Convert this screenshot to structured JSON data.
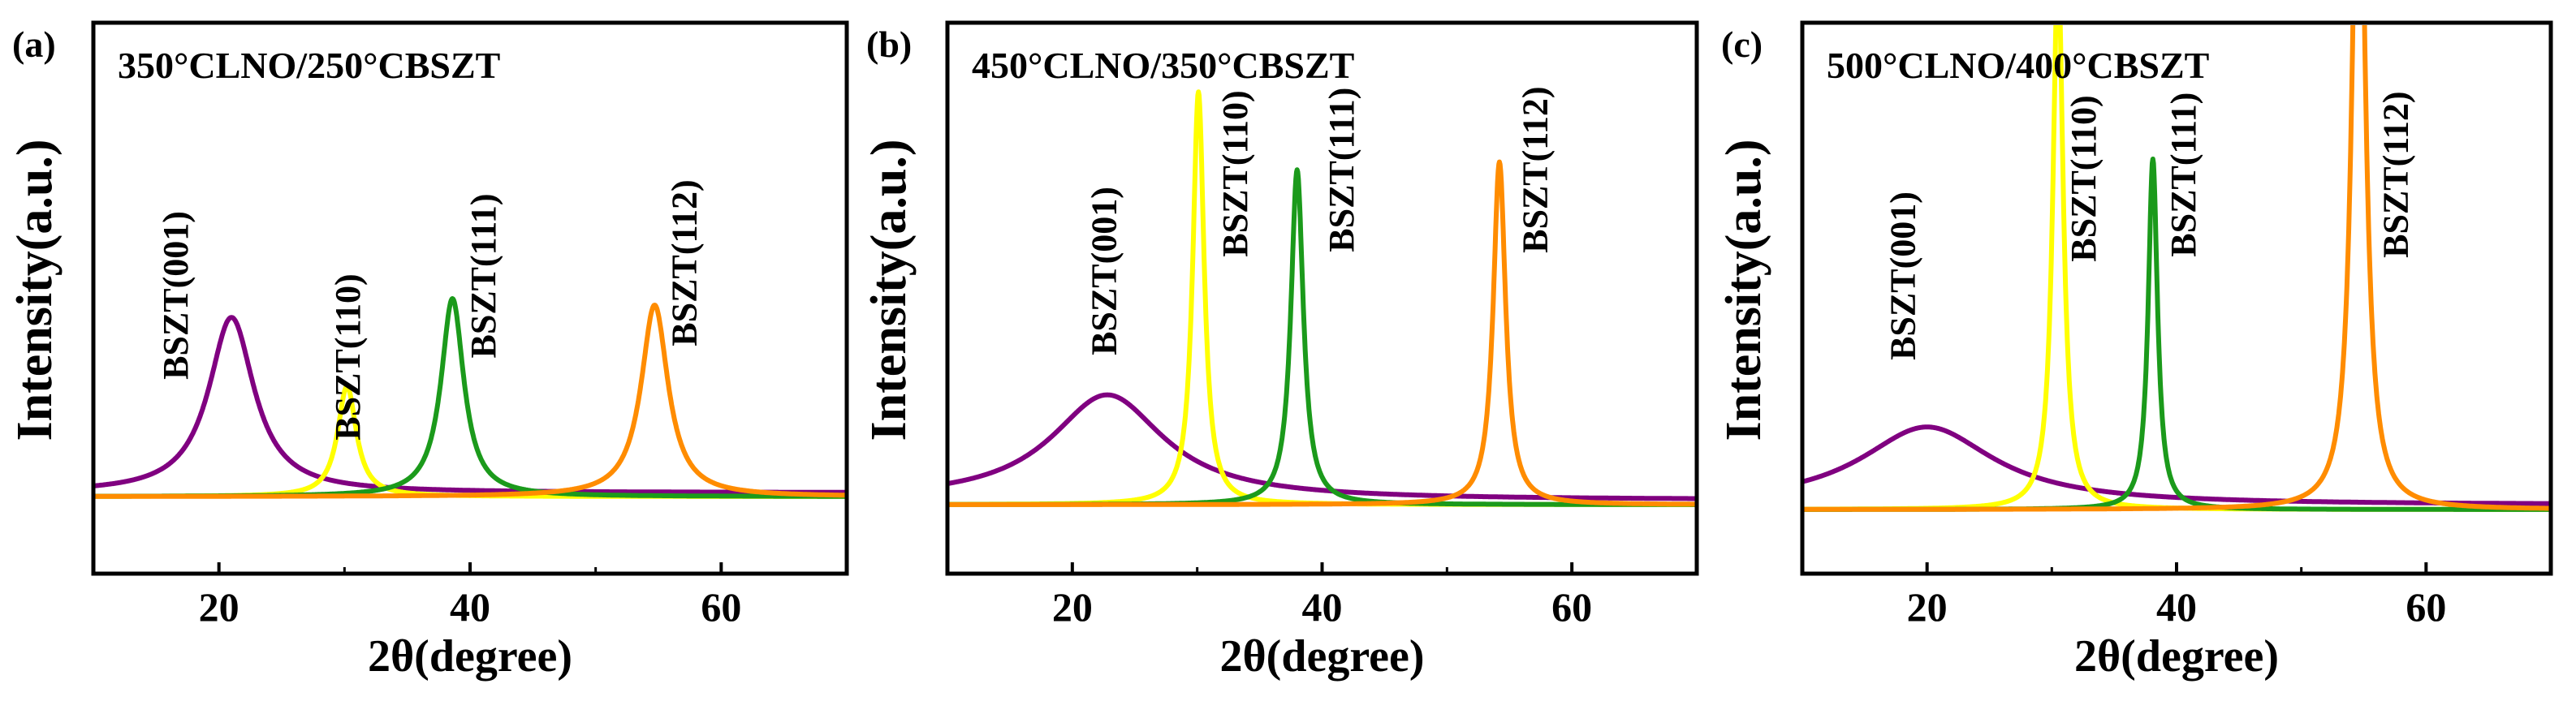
{
  "figure": {
    "colors": {
      "axis": "#000000",
      "BSZT(001)": "#800080",
      "BSZT(110)": "#ffff00",
      "BSZT(111)": "#1b9a1b",
      "BSZT(112)": "#ff8c00"
    }
  },
  "chart_data": [
    {
      "type": "line",
      "panel_label": "(a)",
      "title": "350°CLNO/250°CBSZT",
      "xlabel": "2θ(degree)",
      "ylabel": "Intensity(a.u.)",
      "xlim": [
        10,
        70
      ],
      "ylim": [
        0,
        1
      ],
      "xticks": [
        20,
        40,
        60
      ],
      "yticks": [],
      "grid": false,
      "series": [
        {
          "name": "BSZT(001)",
          "color": "#800080",
          "peak_x": 21.0,
          "peak_height": 0.54,
          "hwhm": 2.2,
          "baseline": 0.0
        },
        {
          "name": "BSZT(110)",
          "color": "#ffff00",
          "peak_x": 30.2,
          "peak_height": 0.34,
          "hwhm": 0.9,
          "baseline": 0.0
        },
        {
          "name": "BSZT(111)",
          "color": "#1b9a1b",
          "peak_x": 38.6,
          "peak_height": 0.61,
          "hwhm": 1.1,
          "baseline": 0.0
        },
        {
          "name": "BSZT(112)",
          "color": "#ff8c00",
          "peak_x": 54.7,
          "peak_height": 0.59,
          "hwhm": 1.3,
          "baseline": 0.0
        }
      ],
      "annotations": [
        {
          "text": "BSZT(001)",
          "x": 17.5,
          "y": 0.62
        },
        {
          "text": "BSZT(110)",
          "x": 31.2,
          "y": 0.43
        },
        {
          "text": "BSZT(111)",
          "x": 42.0,
          "y": 0.68
        },
        {
          "text": "BSZT(112)",
          "x": 58.0,
          "y": 0.72
        }
      ]
    },
    {
      "type": "line",
      "panel_label": "(b)",
      "title": "450°CLNO/350°CBSZT",
      "xlabel": "2θ(degree)",
      "ylabel": "Intensity(a.u.)",
      "xlim": [
        10,
        70
      ],
      "ylim": [
        0,
        1
      ],
      "xticks": [
        20,
        40,
        60
      ],
      "yticks": [],
      "grid": false,
      "series": [
        {
          "name": "BSZT(001)",
          "color": "#800080",
          "peak_x": 22.8,
          "peak_height": 0.27,
          "hwhm": 5.5,
          "baseline": 0.0
        },
        {
          "name": "BSZT(110)",
          "color": "#ffff00",
          "peak_x": 30.1,
          "peak_height": 1.06,
          "hwhm": 0.55,
          "baseline": 0.0
        },
        {
          "name": "BSZT(111)",
          "color": "#1b9a1b",
          "peak_x": 38.0,
          "peak_height": 0.86,
          "hwhm": 0.6,
          "baseline": 0.0
        },
        {
          "name": "BSZT(112)",
          "color": "#ff8c00",
          "peak_x": 54.2,
          "peak_height": 0.88,
          "hwhm": 0.6,
          "baseline": 0.0
        }
      ],
      "annotations": [
        {
          "text": "BSZT(001)",
          "x": 23.5,
          "y": 0.6
        },
        {
          "text": "BSZT(110)",
          "x": 34.0,
          "y": 0.85
        },
        {
          "text": "BSZT(111)",
          "x": 42.5,
          "y": 0.86
        },
        {
          "text": "BSZT(112)",
          "x": 58.0,
          "y": 0.86
        }
      ]
    },
    {
      "type": "line",
      "panel_label": "(c)",
      "title": "500°CLNO/400°CBSZT",
      "xlabel": "2θ(degree)",
      "ylabel": "Intensity(a.u.)",
      "xlim": [
        10,
        70
      ],
      "ylim": [
        0,
        1
      ],
      "xticks": [
        20,
        40,
        60
      ],
      "yticks": [],
      "grid": false,
      "series": [
        {
          "name": "BSZT(001)",
          "color": "#800080",
          "peak_x": 20.0,
          "peak_height": 0.2,
          "hwhm": 6.5,
          "baseline": 0.0
        },
        {
          "name": "BSZT(110)",
          "color": "#ffff00",
          "peak_x": 30.5,
          "peak_height": 1.4,
          "hwhm": 0.5,
          "baseline": 0.0
        },
        {
          "name": "BSZT(111)",
          "color": "#1b9a1b",
          "peak_x": 38.1,
          "peak_height": 0.9,
          "hwhm": 0.45,
          "baseline": 0.0
        },
        {
          "name": "BSZT(112)",
          "color": "#ff8c00",
          "peak_x": 54.6,
          "peak_height": 2.0,
          "hwhm": 0.6,
          "baseline": 0.0
        }
      ],
      "annotations": [
        {
          "text": "BSZT(001)",
          "x": 19.0,
          "y": 0.6
        },
        {
          "text": "BSZT(110)",
          "x": 33.5,
          "y": 0.85
        },
        {
          "text": "BSZT(111)",
          "x": 41.5,
          "y": 0.86
        },
        {
          "text": "BSZT(112)",
          "x": 58.5,
          "y": 0.86
        }
      ]
    }
  ]
}
